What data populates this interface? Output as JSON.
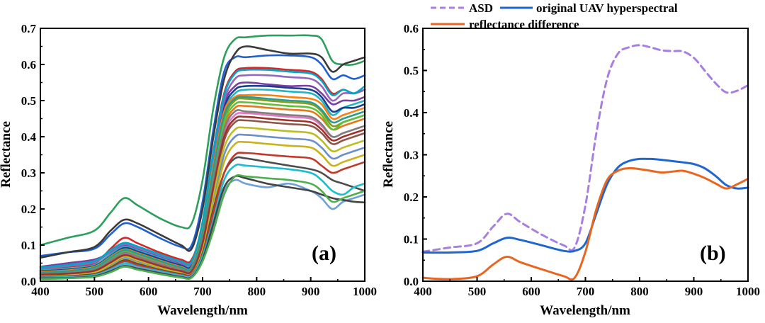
{
  "chart_data": [
    {
      "id": "a",
      "type": "line",
      "panel_label": "(a)",
      "xlabel": "Wavelength/nm",
      "ylabel": "Reflectance",
      "xlim": [
        400,
        1000
      ],
      "ylim": [
        0,
        0.7
      ],
      "xticks": [
        "400",
        "500",
        "600",
        "700",
        "800",
        "900",
        "1000"
      ],
      "yticks": [
        "0.0",
        "0.1",
        "0.2",
        "0.3",
        "0.4",
        "0.5",
        "0.6",
        "0.7"
      ],
      "grid": false,
      "description_count": 60,
      "x": [
        400,
        450,
        500,
        530,
        555,
        580,
        620,
        660,
        680,
        700,
        720,
        740,
        760,
        780,
        820,
        860,
        900,
        920,
        940,
        960,
        980,
        1000
      ],
      "series": [
        {
          "name": "top-green",
          "color": "#2ca05a",
          "values": [
            0.1,
            0.12,
            0.14,
            0.19,
            0.23,
            0.21,
            0.175,
            0.15,
            0.16,
            0.28,
            0.48,
            0.62,
            0.67,
            0.675,
            0.68,
            0.68,
            0.68,
            0.67,
            0.61,
            0.6,
            0.6,
            0.61
          ]
        },
        {
          "name": "blue-high",
          "color": "#1f5fcf",
          "values": [
            0.07,
            0.08,
            0.09,
            0.13,
            0.16,
            0.15,
            0.12,
            0.095,
            0.1,
            0.22,
            0.42,
            0.58,
            0.62,
            0.62,
            0.625,
            0.625,
            0.62,
            0.6,
            0.56,
            0.57,
            0.56,
            0.57
          ]
        },
        {
          "name": "dark-high",
          "color": "#3a3a3a",
          "values": [
            0.065,
            0.08,
            0.095,
            0.14,
            0.17,
            0.16,
            0.13,
            0.1,
            0.09,
            0.2,
            0.4,
            0.56,
            0.63,
            0.65,
            0.64,
            0.63,
            0.63,
            0.62,
            0.58,
            0.6,
            0.61,
            0.62
          ]
        },
        {
          "name": "red-mid",
          "color": "#d62728",
          "values": [
            0.03,
            0.04,
            0.05,
            0.09,
            0.12,
            0.105,
            0.08,
            0.06,
            0.06,
            0.16,
            0.36,
            0.52,
            0.58,
            0.59,
            0.59,
            0.585,
            0.58,
            0.56,
            0.52,
            0.53,
            0.52,
            0.53
          ]
        },
        {
          "name": "purple-mid",
          "color": "#7b3fa0",
          "values": [
            0.04,
            0.05,
            0.06,
            0.08,
            0.1,
            0.09,
            0.07,
            0.05,
            0.05,
            0.14,
            0.33,
            0.49,
            0.54,
            0.55,
            0.545,
            0.54,
            0.54,
            0.52,
            0.49,
            0.5,
            0.5,
            0.51
          ]
        },
        {
          "name": "cyan-mid",
          "color": "#1fb5c4",
          "values": [
            0.03,
            0.035,
            0.045,
            0.075,
            0.095,
            0.085,
            0.065,
            0.045,
            0.045,
            0.14,
            0.32,
            0.47,
            0.52,
            0.53,
            0.53,
            0.525,
            0.52,
            0.5,
            0.46,
            0.48,
            0.49,
            0.5
          ]
        },
        {
          "name": "olive-mid",
          "color": "#8a9a1a",
          "values": [
            0.025,
            0.03,
            0.04,
            0.07,
            0.09,
            0.08,
            0.06,
            0.04,
            0.04,
            0.13,
            0.3,
            0.45,
            0.5,
            0.505,
            0.5,
            0.495,
            0.49,
            0.47,
            0.43,
            0.44,
            0.45,
            0.46
          ]
        },
        {
          "name": "orange-mid",
          "color": "#e6771a",
          "values": [
            0.02,
            0.025,
            0.035,
            0.06,
            0.08,
            0.07,
            0.05,
            0.035,
            0.035,
            0.12,
            0.29,
            0.43,
            0.48,
            0.485,
            0.48,
            0.475,
            0.47,
            0.45,
            0.42,
            0.43,
            0.44,
            0.45
          ]
        },
        {
          "name": "pink-mid",
          "color": "#e377c2",
          "values": [
            0.02,
            0.022,
            0.03,
            0.055,
            0.075,
            0.065,
            0.045,
            0.03,
            0.03,
            0.11,
            0.27,
            0.41,
            0.46,
            0.465,
            0.46,
            0.455,
            0.45,
            0.43,
            0.4,
            0.41,
            0.42,
            0.43
          ]
        },
        {
          "name": "brown-mid",
          "color": "#8c564b",
          "values": [
            0.018,
            0.02,
            0.028,
            0.05,
            0.07,
            0.06,
            0.042,
            0.028,
            0.028,
            0.1,
            0.25,
            0.39,
            0.44,
            0.445,
            0.44,
            0.435,
            0.43,
            0.41,
            0.38,
            0.39,
            0.4,
            0.41
          ]
        },
        {
          "name": "steel-low",
          "color": "#6a8fc9",
          "values": [
            0.015,
            0.018,
            0.025,
            0.045,
            0.065,
            0.055,
            0.038,
            0.025,
            0.025,
            0.09,
            0.22,
            0.35,
            0.4,
            0.405,
            0.4,
            0.395,
            0.39,
            0.37,
            0.34,
            0.35,
            0.36,
            0.37
          ]
        },
        {
          "name": "yellow-low",
          "color": "#c9b21a",
          "values": [
            0.012,
            0.015,
            0.022,
            0.04,
            0.06,
            0.05,
            0.034,
            0.022,
            0.022,
            0.085,
            0.21,
            0.33,
            0.38,
            0.385,
            0.38,
            0.375,
            0.37,
            0.35,
            0.32,
            0.33,
            0.34,
            0.35
          ]
        },
        {
          "name": "dark-low",
          "color": "#4d4d4d",
          "values": [
            0.012,
            0.014,
            0.02,
            0.038,
            0.058,
            0.048,
            0.032,
            0.02,
            0.02,
            0.08,
            0.2,
            0.3,
            0.34,
            0.34,
            0.33,
            0.32,
            0.31,
            0.3,
            0.28,
            0.27,
            0.26,
            0.25
          ]
        },
        {
          "name": "red-low",
          "color": "#c0392b",
          "values": [
            0.01,
            0.012,
            0.018,
            0.035,
            0.055,
            0.045,
            0.03,
            0.018,
            0.018,
            0.075,
            0.19,
            0.3,
            0.35,
            0.355,
            0.35,
            0.345,
            0.34,
            0.32,
            0.3,
            0.31,
            0.32,
            0.33
          ]
        },
        {
          "name": "teal-low",
          "color": "#17becf",
          "values": [
            0.01,
            0.012,
            0.017,
            0.033,
            0.05,
            0.04,
            0.028,
            0.016,
            0.016,
            0.07,
            0.17,
            0.28,
            0.32,
            0.32,
            0.315,
            0.31,
            0.3,
            0.28,
            0.25,
            0.24,
            0.26,
            0.27
          ]
        },
        {
          "name": "sky-lowest",
          "color": "#6fa0d8",
          "values": [
            0.008,
            0.01,
            0.015,
            0.03,
            0.045,
            0.038,
            0.025,
            0.014,
            0.014,
            0.06,
            0.15,
            0.25,
            0.28,
            0.27,
            0.26,
            0.27,
            0.25,
            0.23,
            0.2,
            0.22,
            0.23,
            0.24
          ]
        },
        {
          "name": "charcoal-drop",
          "color": "#444444",
          "values": [
            0.008,
            0.009,
            0.014,
            0.028,
            0.042,
            0.035,
            0.023,
            0.012,
            0.012,
            0.06,
            0.16,
            0.26,
            0.29,
            0.285,
            0.27,
            0.26,
            0.25,
            0.24,
            0.23,
            0.225,
            0.22,
            0.218
          ]
        },
        {
          "name": "green-low",
          "color": "#4caf50",
          "values": [
            0.006,
            0.008,
            0.012,
            0.025,
            0.04,
            0.032,
            0.02,
            0.01,
            0.01,
            0.055,
            0.14,
            0.24,
            0.29,
            0.29,
            0.285,
            0.28,
            0.27,
            0.25,
            0.22,
            0.23,
            0.24,
            0.25
          ]
        },
        {
          "name": "blue-dark",
          "color": "#1a3f8f",
          "values": [
            0.028,
            0.032,
            0.042,
            0.07,
            0.092,
            0.082,
            0.062,
            0.044,
            0.044,
            0.15,
            0.33,
            0.48,
            0.53,
            0.54,
            0.54,
            0.535,
            0.53,
            0.51,
            0.47,
            0.48,
            0.48,
            0.49
          ]
        },
        {
          "name": "green-bright",
          "color": "#5bc236",
          "values": [
            0.022,
            0.026,
            0.036,
            0.062,
            0.084,
            0.074,
            0.055,
            0.038,
            0.038,
            0.125,
            0.295,
            0.44,
            0.49,
            0.495,
            0.49,
            0.485,
            0.48,
            0.46,
            0.42,
            0.44,
            0.45,
            0.46
          ]
        },
        {
          "name": "violet-high",
          "color": "#9467bd",
          "values": [
            0.035,
            0.042,
            0.052,
            0.082,
            0.102,
            0.092,
            0.072,
            0.052,
            0.052,
            0.16,
            0.35,
            0.5,
            0.56,
            0.57,
            0.57,
            0.565,
            0.56,
            0.54,
            0.5,
            0.52,
            0.52,
            0.53
          ]
        },
        {
          "name": "orange-high",
          "color": "#ff7f0e",
          "values": [
            0.026,
            0.03,
            0.04,
            0.068,
            0.088,
            0.078,
            0.058,
            0.04,
            0.04,
            0.145,
            0.32,
            0.47,
            0.51,
            0.515,
            0.515,
            0.51,
            0.505,
            0.49,
            0.45,
            0.46,
            0.47,
            0.48
          ]
        },
        {
          "name": "gray-mid",
          "color": "#7f7f7f",
          "values": [
            0.02,
            0.024,
            0.032,
            0.058,
            0.078,
            0.068,
            0.048,
            0.032,
            0.032,
            0.115,
            0.28,
            0.42,
            0.47,
            0.47,
            0.465,
            0.46,
            0.455,
            0.435,
            0.4,
            0.41,
            0.42,
            0.43
          ]
        },
        {
          "name": "lime-mid",
          "color": "#bcbd22",
          "values": [
            0.016,
            0.019,
            0.026,
            0.048,
            0.068,
            0.058,
            0.04,
            0.026,
            0.026,
            0.095,
            0.24,
            0.37,
            0.42,
            0.425,
            0.42,
            0.415,
            0.41,
            0.39,
            0.36,
            0.37,
            0.38,
            0.39
          ]
        },
        {
          "name": "cyan-high",
          "color": "#00a6c8",
          "values": [
            0.038,
            0.045,
            0.056,
            0.086,
            0.106,
            0.096,
            0.075,
            0.055,
            0.055,
            0.165,
            0.36,
            0.515,
            0.575,
            0.585,
            0.585,
            0.58,
            0.575,
            0.555,
            0.515,
            0.53,
            0.52,
            0.54
          ]
        },
        {
          "name": "maroon-mid",
          "color": "#a0302a",
          "values": [
            0.018,
            0.021,
            0.029,
            0.052,
            0.072,
            0.062,
            0.043,
            0.028,
            0.028,
            0.105,
            0.26,
            0.4,
            0.45,
            0.455,
            0.45,
            0.445,
            0.44,
            0.42,
            0.39,
            0.4,
            0.41,
            0.42
          ]
        },
        {
          "name": "teal-mid",
          "color": "#2a9d8f",
          "values": [
            0.024,
            0.028,
            0.038,
            0.066,
            0.086,
            0.076,
            0.056,
            0.038,
            0.038,
            0.135,
            0.31,
            0.46,
            0.505,
            0.51,
            0.505,
            0.5,
            0.495,
            0.475,
            0.44,
            0.45,
            0.46,
            0.47
          ]
        }
      ]
    },
    {
      "id": "b",
      "type": "line",
      "panel_label": "(b)",
      "xlabel": "Wavelength/nm",
      "ylabel": "Reflectance",
      "xlim": [
        400,
        1000
      ],
      "ylim": [
        0,
        0.6
      ],
      "xticks": [
        "400",
        "500",
        "600",
        "700",
        "800",
        "900",
        "1000"
      ],
      "yticks": [
        "0.0",
        "0.1",
        "0.2",
        "0.3",
        "0.4",
        "0.5",
        "0.6"
      ],
      "grid": false,
      "legend_position": "top, above plot",
      "x": [
        400,
        450,
        500,
        530,
        555,
        580,
        620,
        660,
        680,
        700,
        720,
        740,
        760,
        780,
        800,
        820,
        840,
        860,
        880,
        900,
        920,
        940,
        960,
        980,
        1000
      ],
      "series": [
        {
          "name": "ASD",
          "color": "#a87fe0",
          "dash": "dash",
          "values": [
            0.07,
            0.08,
            0.09,
            0.13,
            0.16,
            0.14,
            0.11,
            0.085,
            0.08,
            0.18,
            0.35,
            0.48,
            0.54,
            0.555,
            0.56,
            0.555,
            0.548,
            0.546,
            0.545,
            0.53,
            0.5,
            0.47,
            0.448,
            0.452,
            0.465
          ]
        },
        {
          "name": "original UAV hyperspectral",
          "color": "#1f66d1",
          "dash": "solid",
          "values": [
            0.068,
            0.068,
            0.072,
            0.09,
            0.103,
            0.098,
            0.085,
            0.072,
            0.072,
            0.09,
            0.16,
            0.23,
            0.27,
            0.285,
            0.29,
            0.29,
            0.288,
            0.285,
            0.282,
            0.278,
            0.268,
            0.25,
            0.228,
            0.22,
            0.222
          ]
        },
        {
          "name": "reflectance difference",
          "color": "#e8661f",
          "dash": "solid",
          "values": [
            0.008,
            0.005,
            0.012,
            0.04,
            0.058,
            0.045,
            0.028,
            0.012,
            0.008,
            0.07,
            0.17,
            0.24,
            0.262,
            0.268,
            0.266,
            0.262,
            0.258,
            0.26,
            0.262,
            0.255,
            0.245,
            0.232,
            0.22,
            0.23,
            0.243
          ]
        }
      ]
    }
  ]
}
